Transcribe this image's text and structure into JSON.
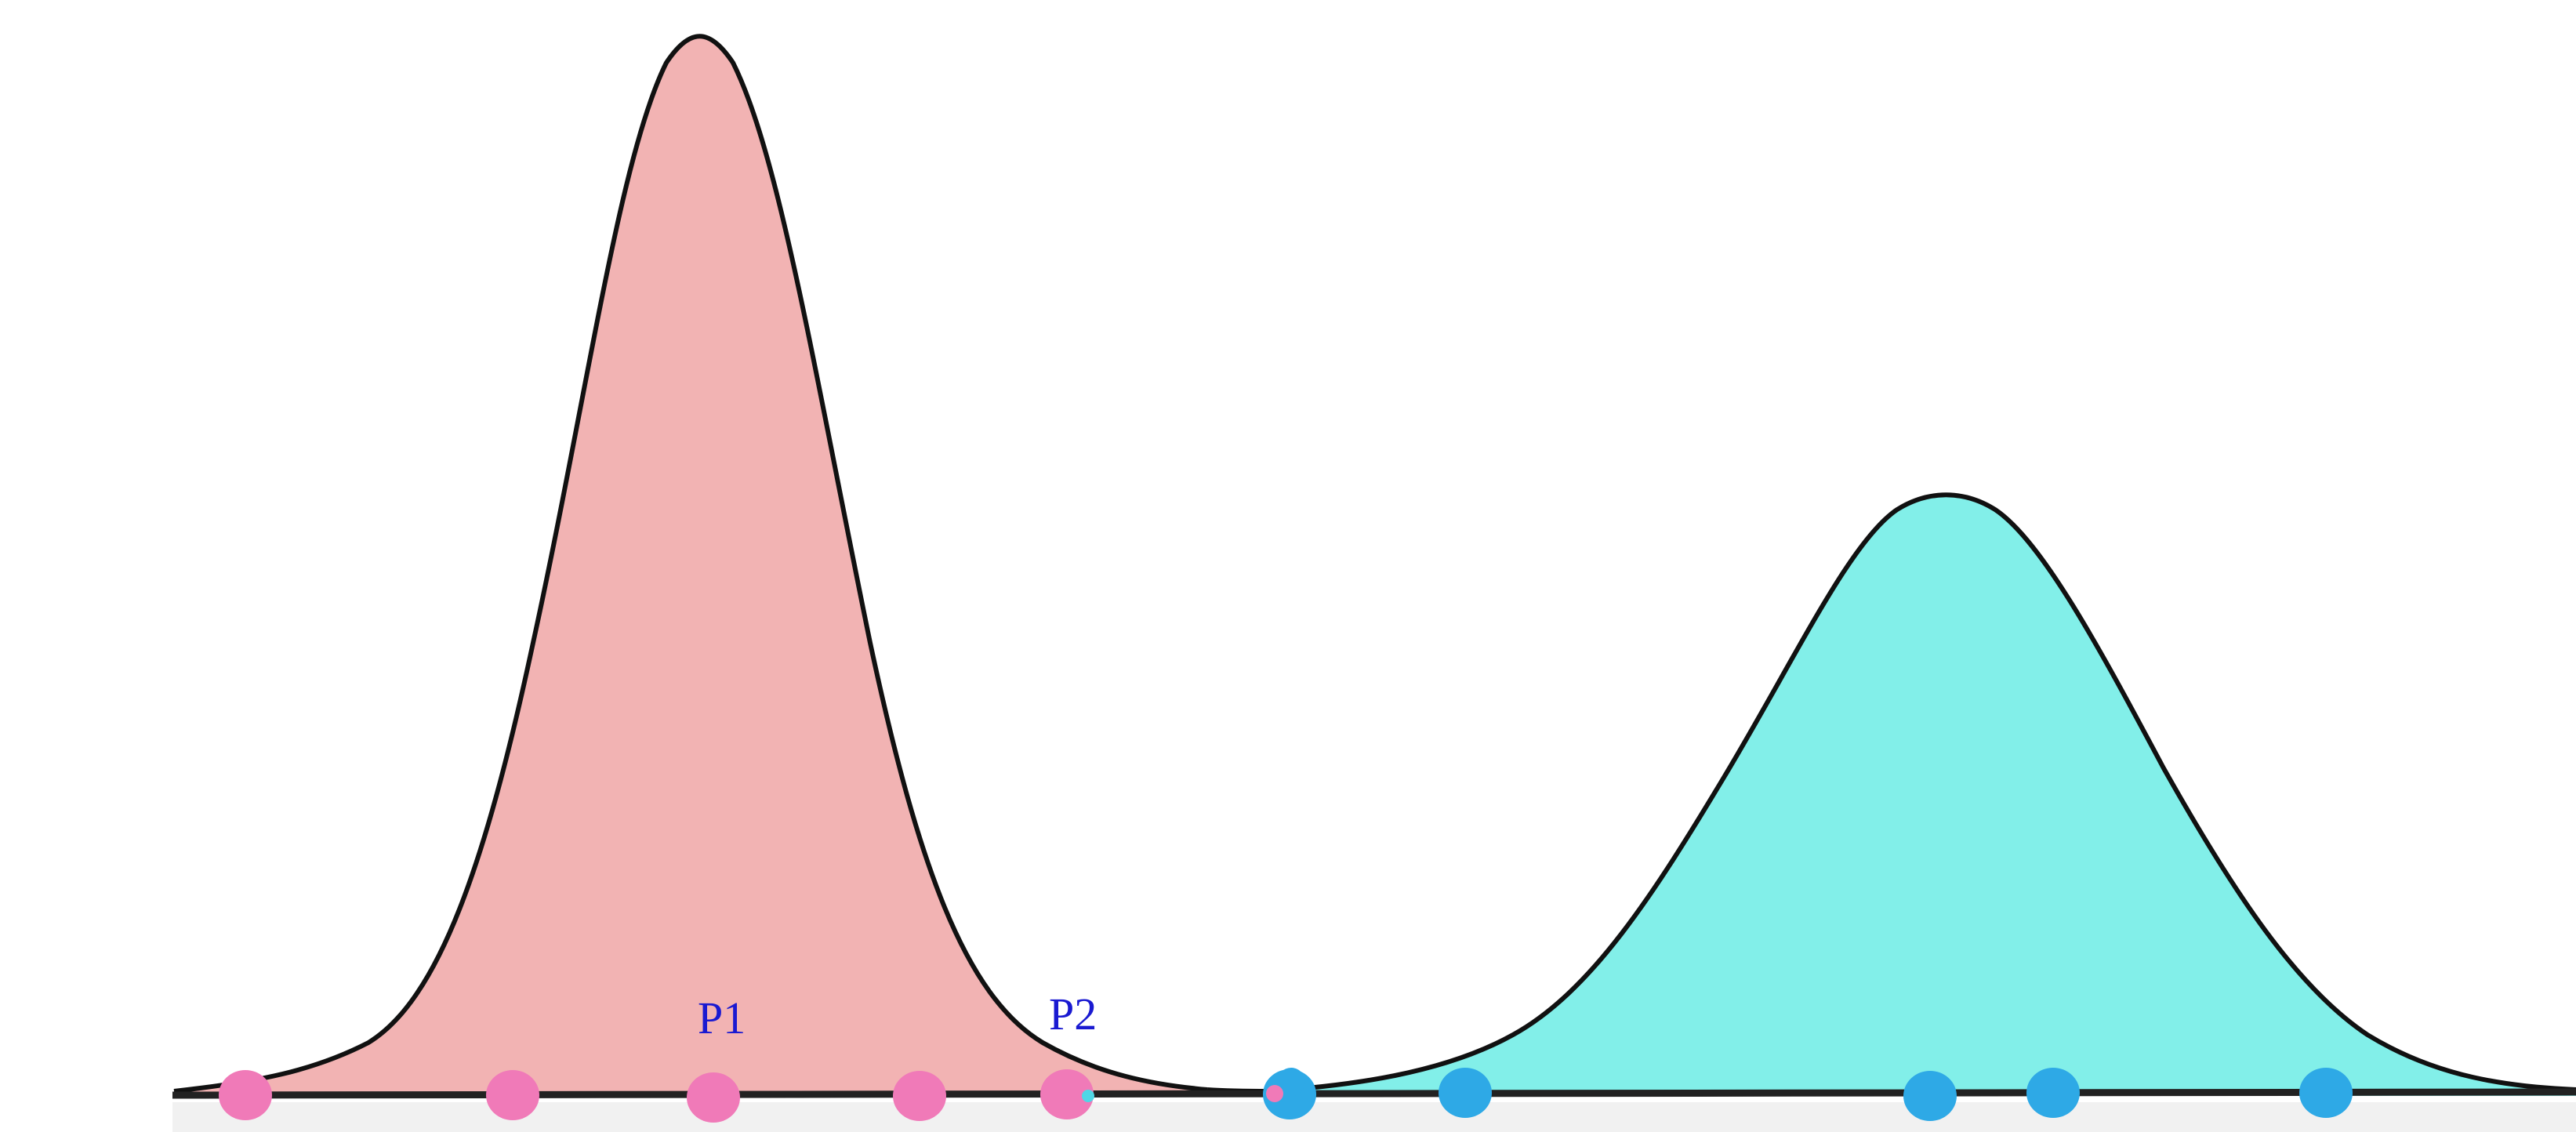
{
  "diagram": {
    "labels": {
      "p1": "P1",
      "p2": "P2"
    },
    "curves": [
      {
        "name": "left-distribution",
        "fill_color": "#f2b3b3"
      },
      {
        "name": "right-distribution",
        "fill_color": "#82efe9"
      }
    ],
    "colors": {
      "outline": "#111111",
      "axis": "#222222",
      "label": "#1a1ad1",
      "pink_point": "#f07ab8",
      "blue_point": "#2ea9e6",
      "small_cyan_point": "#4fd7e6",
      "small_pink_point": "#f07ab8"
    }
  }
}
